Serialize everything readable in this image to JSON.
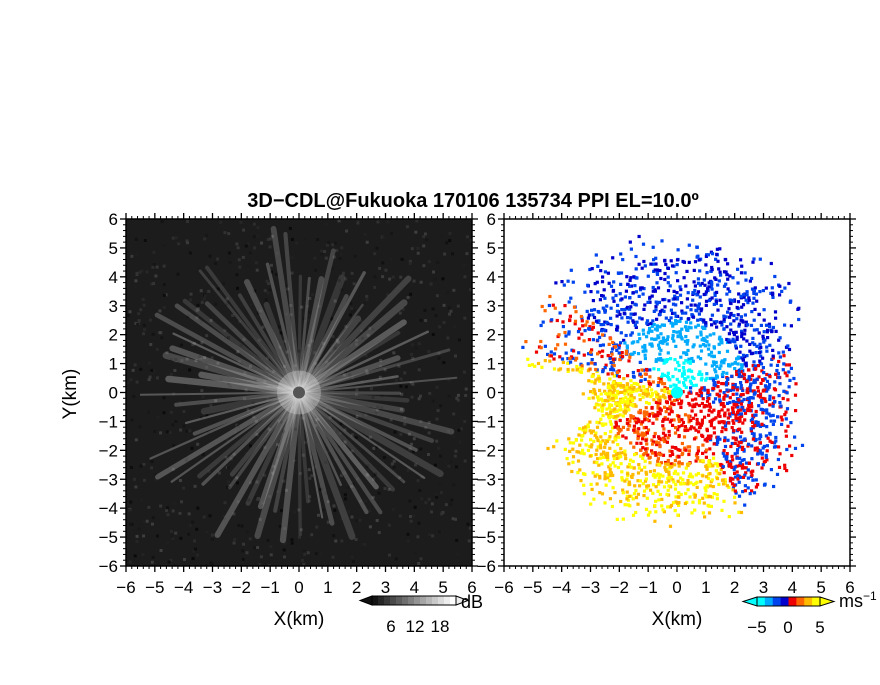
{
  "title": "3D−CDL@Fukuoka 170106 135734 PPI EL=10.0º",
  "panels": [
    {
      "id": "reflectivity",
      "xlabel": "X(km)",
      "ylabel": "Y(km)"
    },
    {
      "id": "velocity",
      "xlabel": "X(km)",
      "ylabel": ""
    }
  ],
  "colorbars": {
    "reflectivity": {
      "unit": "dB",
      "ticks": [
        "6",
        "12",
        "18"
      ],
      "range": [
        0,
        24
      ]
    },
    "velocity": {
      "unit": "ms",
      "unit_exp": "−1",
      "ticks": [
        "−5",
        "0",
        "5"
      ],
      "range": [
        -10,
        10
      ]
    }
  },
  "colors": {
    "reflectivity_background": "#1c1c1c",
    "velocity_negative": [
      "#00ffff",
      "#00aaff",
      "#0044ee",
      "#0000cc"
    ],
    "velocity_positive": [
      "#ffff00",
      "#ffbb00",
      "#ff6600",
      "#ee0000"
    ]
  },
  "chart_data": [
    {
      "type": "heatmap",
      "title": "",
      "xlabel": "X(km)",
      "ylabel": "Y(km)",
      "xlim": [
        -6,
        6
      ],
      "ylim": [
        -6,
        6
      ],
      "x_ticks": [
        "−6",
        "−5",
        "−4",
        "−3",
        "−2",
        "−1",
        "0",
        "1",
        "2",
        "3",
        "4",
        "5",
        "6"
      ],
      "y_ticks": [
        "6",
        "5",
        "4",
        "3",
        "2",
        "1",
        "0",
        "−1",
        "−2",
        "−3",
        "−4",
        "−5",
        "−6"
      ],
      "colorbar_label": "dB",
      "colorbar_range": [
        0,
        24
      ],
      "colorbar_ticks": [
        6,
        12,
        18
      ]
    },
    {
      "type": "heatmap",
      "title": "",
      "xlabel": "X(km)",
      "ylabel": "",
      "xlim": [
        -6,
        6
      ],
      "ylim": [
        -6,
        6
      ],
      "x_ticks": [
        "−6",
        "−5",
        "−4",
        "−3",
        "−2",
        "−1",
        "0",
        "1",
        "2",
        "3",
        "4",
        "5",
        "6"
      ],
      "y_ticks": [
        "6",
        "5",
        "4",
        "3",
        "2",
        "1",
        "0",
        "−1",
        "−2",
        "−3",
        "−4",
        "−5",
        "−6"
      ],
      "colorbar_label": "ms−1",
      "colorbar_range": [
        -10,
        10
      ],
      "colorbar_ticks": [
        -5,
        0,
        5
      ]
    }
  ]
}
